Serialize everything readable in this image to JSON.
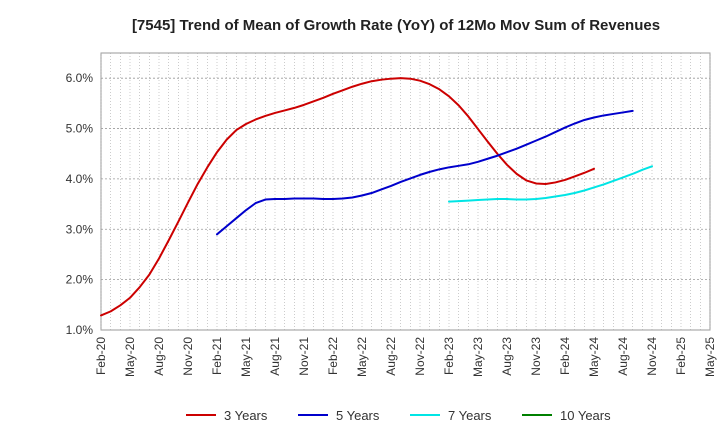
{
  "chart_data": {
    "type": "line",
    "title": "[7545]  Trend of Mean of Growth Rate (YoY) of 12Mo Mov Sum of Revenues",
    "xlabel": "",
    "ylabel": "",
    "ylim": [
      1.0,
      6.5
    ],
    "yticks": [
      1.0,
      2.0,
      3.0,
      4.0,
      5.0,
      6.0
    ],
    "ytick_labels": [
      "1.0%",
      "2.0%",
      "3.0%",
      "4.0%",
      "5.0%",
      "6.0%"
    ],
    "x_tick_labels": [
      "Feb-20",
      "May-20",
      "Aug-20",
      "Nov-20",
      "Feb-21",
      "May-21",
      "Aug-21",
      "Nov-21",
      "Feb-22",
      "May-22",
      "Aug-22",
      "Nov-22",
      "Feb-23",
      "May-23",
      "Aug-23",
      "Nov-23",
      "Feb-24",
      "May-24",
      "Aug-24",
      "Nov-24",
      "Feb-25",
      "May-25"
    ],
    "grid": true,
    "legend_position": "bottom",
    "series": [
      {
        "name": "3 Years",
        "color": "#cc0000",
        "points": [
          [
            0,
            1.29
          ],
          [
            1,
            1.37
          ],
          [
            2,
            1.49
          ],
          [
            3,
            1.64
          ],
          [
            4,
            1.85
          ],
          [
            5,
            2.1
          ],
          [
            6,
            2.42
          ],
          [
            7,
            2.78
          ],
          [
            8,
            3.15
          ],
          [
            9,
            3.53
          ],
          [
            10,
            3.9
          ],
          [
            11,
            4.23
          ],
          [
            12,
            4.53
          ],
          [
            13,
            4.78
          ],
          [
            14,
            4.97
          ],
          [
            15,
            5.09
          ],
          [
            16,
            5.18
          ],
          [
            17,
            5.25
          ],
          [
            18,
            5.31
          ],
          [
            19,
            5.36
          ],
          [
            20,
            5.41
          ],
          [
            21,
            5.47
          ],
          [
            22,
            5.54
          ],
          [
            23,
            5.61
          ],
          [
            24,
            5.69
          ],
          [
            25,
            5.76
          ],
          [
            26,
            5.83
          ],
          [
            27,
            5.89
          ],
          [
            28,
            5.94
          ],
          [
            29,
            5.97
          ],
          [
            30,
            5.99
          ],
          [
            31,
            6.0
          ],
          [
            32,
            5.99
          ],
          [
            33,
            5.95
          ],
          [
            34,
            5.88
          ],
          [
            35,
            5.78
          ],
          [
            36,
            5.64
          ],
          [
            37,
            5.46
          ],
          [
            38,
            5.24
          ],
          [
            39,
            4.99
          ],
          [
            40,
            4.74
          ],
          [
            41,
            4.5
          ],
          [
            42,
            4.28
          ],
          [
            43,
            4.1
          ],
          [
            44,
            3.97
          ],
          [
            45,
            3.91
          ],
          [
            46,
            3.9
          ],
          [
            47,
            3.93
          ],
          [
            48,
            3.98
          ],
          [
            49,
            4.05
          ],
          [
            50,
            4.12
          ],
          [
            51,
            4.2
          ]
        ]
      },
      {
        "name": "5 Years",
        "color": "#0000cc",
        "points": [
          [
            12,
            2.9
          ],
          [
            13,
            3.06
          ],
          [
            14,
            3.22
          ],
          [
            15,
            3.38
          ],
          [
            16,
            3.52
          ],
          [
            17,
            3.59
          ],
          [
            18,
            3.6
          ],
          [
            19,
            3.6
          ],
          [
            20,
            3.61
          ],
          [
            21,
            3.61
          ],
          [
            22,
            3.61
          ],
          [
            23,
            3.6
          ],
          [
            24,
            3.6
          ],
          [
            25,
            3.61
          ],
          [
            26,
            3.63
          ],
          [
            27,
            3.67
          ],
          [
            28,
            3.72
          ],
          [
            29,
            3.79
          ],
          [
            30,
            3.86
          ],
          [
            31,
            3.94
          ],
          [
            32,
            4.01
          ],
          [
            33,
            4.08
          ],
          [
            34,
            4.14
          ],
          [
            35,
            4.19
          ],
          [
            36,
            4.23
          ],
          [
            37,
            4.26
          ],
          [
            38,
            4.29
          ],
          [
            39,
            4.34
          ],
          [
            40,
            4.4
          ],
          [
            41,
            4.46
          ],
          [
            42,
            4.53
          ],
          [
            43,
            4.6
          ],
          [
            44,
            4.68
          ],
          [
            45,
            4.76
          ],
          [
            46,
            4.84
          ],
          [
            47,
            4.93
          ],
          [
            48,
            5.02
          ],
          [
            49,
            5.1
          ],
          [
            50,
            5.17
          ],
          [
            51,
            5.22
          ],
          [
            52,
            5.26
          ],
          [
            53,
            5.29
          ],
          [
            54,
            5.32
          ],
          [
            55,
            5.35
          ]
        ]
      },
      {
        "name": "7 Years",
        "color": "#00e5e5",
        "points": [
          [
            36,
            3.55
          ],
          [
            37,
            3.56
          ],
          [
            38,
            3.57
          ],
          [
            39,
            3.58
          ],
          [
            40,
            3.59
          ],
          [
            41,
            3.6
          ],
          [
            42,
            3.6
          ],
          [
            43,
            3.59
          ],
          [
            44,
            3.59
          ],
          [
            45,
            3.6
          ],
          [
            46,
            3.62
          ],
          [
            47,
            3.65
          ],
          [
            48,
            3.68
          ],
          [
            49,
            3.72
          ],
          [
            50,
            3.77
          ],
          [
            51,
            3.83
          ],
          [
            52,
            3.89
          ],
          [
            53,
            3.96
          ],
          [
            54,
            4.03
          ],
          [
            55,
            4.1
          ],
          [
            56,
            4.18
          ],
          [
            57,
            4.25
          ]
        ]
      },
      {
        "name": "10 Years",
        "color": "#008000",
        "points": []
      }
    ],
    "x_months_from_feb_2020_note": "x values are months since Feb-20"
  }
}
